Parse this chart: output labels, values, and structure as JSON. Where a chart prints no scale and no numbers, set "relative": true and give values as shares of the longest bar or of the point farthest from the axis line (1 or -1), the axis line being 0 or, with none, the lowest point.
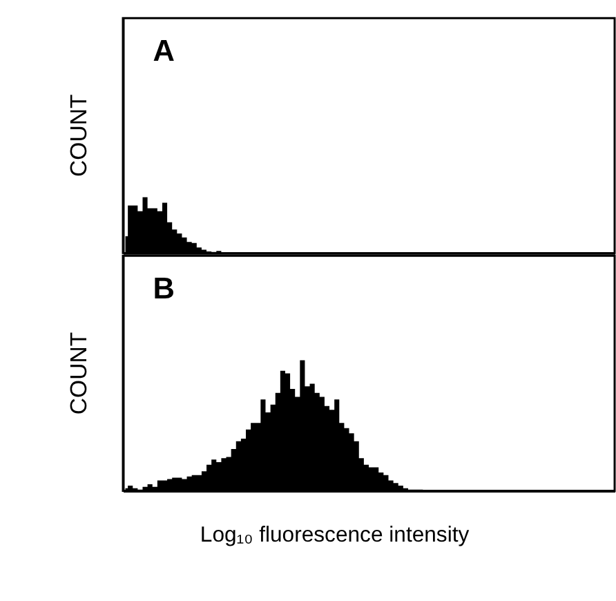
{
  "chart_data": [
    {
      "type": "area",
      "title": "A",
      "ylabel": "COUNT",
      "relative": true,
      "tick_labels": false,
      "grid": false,
      "categories": [
        null,
        null,
        null,
        null,
        null,
        null,
        null,
        null,
        null,
        null,
        null,
        null,
        null,
        null,
        null,
        null,
        null,
        null,
        null,
        null,
        null,
        null,
        null,
        null,
        null,
        null,
        null,
        null,
        null,
        null,
        null,
        null,
        null,
        null,
        null,
        null,
        null,
        null,
        null,
        null,
        null,
        null,
        null,
        null,
        null,
        null,
        null,
        null,
        null,
        null,
        null,
        null,
        null,
        null,
        null,
        null,
        null,
        null,
        null,
        null,
        null,
        null,
        null,
        null,
        null,
        null,
        null,
        null,
        null,
        null,
        null,
        null,
        null,
        null,
        null,
        null,
        null,
        null,
        null,
        null,
        null,
        null,
        null,
        null,
        null,
        null,
        null,
        null,
        null,
        null,
        null,
        null,
        null,
        null,
        null,
        null,
        null,
        null,
        null,
        null
      ],
      "series": [
        {
          "color": "#000000",
          "values": [
            0.3,
            0.85,
            0.85,
            0.75,
            1.0,
            0.8,
            0.8,
            0.75,
            0.9,
            0.55,
            0.42,
            0.35,
            0.28,
            0.2,
            0.18,
            0.1,
            0.06,
            0.03,
            0.02,
            0.04,
            0.01,
            0,
            0,
            0,
            0,
            0,
            0,
            0,
            0,
            0,
            0,
            0,
            0,
            0,
            0,
            0,
            0,
            0,
            0,
            0,
            0,
            0,
            0,
            0,
            0,
            0,
            0,
            0,
            0,
            0,
            0,
            0,
            0,
            0,
            0,
            0,
            0,
            0,
            0,
            0,
            0,
            0,
            0,
            0,
            0,
            0,
            0,
            0,
            0,
            0,
            0,
            0,
            0,
            0,
            0,
            0,
            0,
            0,
            0,
            0,
            0,
            0,
            0,
            0,
            0,
            0,
            0,
            0,
            0,
            0,
            0,
            0,
            0,
            0,
            0,
            0,
            0,
            0,
            0,
            0
          ]
        }
      ]
    },
    {
      "type": "area",
      "title": "B",
      "ylabel": "COUNT",
      "xlabel": "Log₁₀ fluorescence intensity",
      "relative": true,
      "tick_labels": false,
      "grid": false,
      "categories": [
        null,
        null,
        null,
        null,
        null,
        null,
        null,
        null,
        null,
        null,
        null,
        null,
        null,
        null,
        null,
        null,
        null,
        null,
        null,
        null,
        null,
        null,
        null,
        null,
        null,
        null,
        null,
        null,
        null,
        null,
        null,
        null,
        null,
        null,
        null,
        null,
        null,
        null,
        null,
        null,
        null,
        null,
        null,
        null,
        null,
        null,
        null,
        null,
        null,
        null,
        null,
        null,
        null,
        null,
        null,
        null,
        null,
        null,
        null,
        null,
        null,
        null,
        null,
        null,
        null,
        null,
        null,
        null,
        null,
        null,
        null,
        null,
        null,
        null,
        null,
        null,
        null,
        null,
        null,
        null,
        null,
        null,
        null,
        null,
        null,
        null,
        null,
        null,
        null,
        null,
        null,
        null,
        null,
        null,
        null,
        null,
        null,
        null,
        null,
        null
      ],
      "series": [
        {
          "color": "#000000",
          "values": [
            0.02,
            0.04,
            0.02,
            0.01,
            0.03,
            0.05,
            0.03,
            0.08,
            0.08,
            0.09,
            0.1,
            0.1,
            0.09,
            0.11,
            0.12,
            0.12,
            0.15,
            0.2,
            0.24,
            0.22,
            0.25,
            0.26,
            0.32,
            0.38,
            0.4,
            0.47,
            0.52,
            0.52,
            0.7,
            0.6,
            0.66,
            0.75,
            0.92,
            0.9,
            0.78,
            0.72,
            1.0,
            0.8,
            0.82,
            0.75,
            0.72,
            0.65,
            0.62,
            0.7,
            0.52,
            0.48,
            0.44,
            0.38,
            0.25,
            0.2,
            0.18,
            0.18,
            0.14,
            0.12,
            0.08,
            0.06,
            0.04,
            0.02,
            0.01,
            0.01,
            0.01,
            0,
            0,
            0,
            0,
            0,
            0,
            0,
            0,
            0,
            0,
            0,
            0,
            0,
            0,
            0,
            0,
            0,
            0,
            0,
            0,
            0,
            0,
            0,
            0,
            0,
            0,
            0,
            0,
            0,
            0,
            0,
            0,
            0,
            0,
            0,
            0,
            0,
            0,
            0
          ]
        }
      ]
    }
  ]
}
